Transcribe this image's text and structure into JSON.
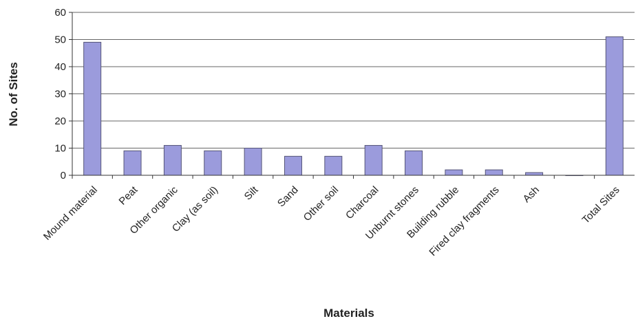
{
  "chart_data": {
    "type": "bar",
    "xlabel": "Materials",
    "ylabel": "No. of Sites",
    "ylim": [
      0,
      60
    ],
    "yticks": [
      "0",
      "10",
      "20",
      "30",
      "40",
      "50",
      "60"
    ],
    "grid": true,
    "legend": "none",
    "categories": [
      "Mound material",
      "Peat",
      "Other organic",
      "Clay (as soil)",
      "Silt",
      "Sand",
      "Other soil",
      "Charcoal",
      "Unburnt stones",
      "Building rubble",
      "Fired clay fragments",
      "Ash",
      "",
      "Total Sites"
    ],
    "values": [
      49,
      9,
      11,
      9,
      10,
      7,
      7,
      11,
      9,
      2,
      2,
      1,
      0,
      51
    ],
    "colors": {
      "bar": "#9b9bdc",
      "bar_stroke": "#555577",
      "grid": "#666666",
      "axis": "#333333"
    }
  }
}
